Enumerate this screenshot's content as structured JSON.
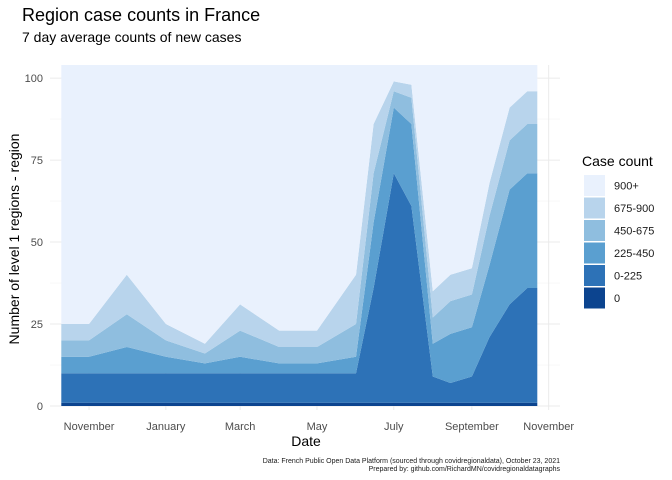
{
  "chart_data": {
    "type": "area",
    "title": "Region case counts in France",
    "subtitle": "7 day average counts of new cases",
    "xlabel": "Date",
    "ylabel": "Number of level 1 regions - region",
    "x_ticks": [
      "November",
      "January",
      "March",
      "May",
      "July",
      "September",
      "November"
    ],
    "x_tick_dates": [
      "2020-11-01",
      "2021-01-01",
      "2021-03-01",
      "2021-05-01",
      "2021-07-01",
      "2021-09-01",
      "2021-11-01"
    ],
    "xlim": [
      "2020-10-01",
      "2021-11-10"
    ],
    "y_ticks": [
      0,
      25,
      50,
      75,
      100
    ],
    "ylim": [
      0,
      104
    ],
    "grid": true,
    "legend": {
      "title": "Case count",
      "position": "right",
      "entries": [
        {
          "label": "900+",
          "color": "#e9f1fd"
        },
        {
          "label": "675-900",
          "color": "#b8d4ec"
        },
        {
          "label": "450-675",
          "color": "#8fbedf"
        },
        {
          "label": "225-450",
          "color": "#5a9fd0"
        },
        {
          "label": "0-225",
          "color": "#2d72b7"
        },
        {
          "label": "0",
          "color": "#0c448f"
        }
      ]
    },
    "stack_order_bottom_to_top": [
      "0",
      "0-225",
      "225-450",
      "450-675",
      "675-900",
      "900+"
    ],
    "x": [
      "2020-10-10",
      "2020-11-01",
      "2020-12-01",
      "2021-01-01",
      "2021-02-01",
      "2021-03-01",
      "2021-04-01",
      "2021-05-01",
      "2021-06-01",
      "2021-06-15",
      "2021-07-01",
      "2021-07-15",
      "2021-08-01",
      "2021-08-15",
      "2021-09-01",
      "2021-09-15",
      "2021-10-01",
      "2021-10-15",
      "2021-10-23"
    ],
    "series": [
      {
        "name": "0",
        "values": [
          1,
          1,
          1,
          1,
          1,
          1,
          1,
          1,
          1,
          1,
          1,
          1,
          1,
          1,
          1,
          1,
          1,
          1,
          1
        ]
      },
      {
        "name": "0-225",
        "values": [
          9,
          9,
          9,
          9,
          9,
          9,
          9,
          9,
          9,
          35,
          70,
          60,
          8,
          6,
          8,
          20,
          30,
          35,
          35
        ]
      },
      {
        "name": "225-450",
        "values": [
          5,
          5,
          8,
          5,
          3,
          5,
          3,
          3,
          5,
          20,
          20,
          25,
          10,
          15,
          15,
          22,
          35,
          35,
          35
        ]
      },
      {
        "name": "450-675",
        "values": [
          5,
          5,
          10,
          5,
          3,
          8,
          5,
          5,
          10,
          15,
          5,
          8,
          8,
          10,
          10,
          15,
          15,
          15,
          15
        ]
      },
      {
        "name": "675-900",
        "values": [
          5,
          5,
          12,
          5,
          3,
          8,
          5,
          5,
          15,
          15,
          3,
          4,
          8,
          8,
          8,
          10,
          10,
          10,
          10
        ]
      },
      {
        "name": "900+",
        "values": [
          79,
          79,
          64,
          79,
          85,
          73,
          81,
          81,
          64,
          18,
          5,
          6,
          69,
          64,
          62,
          36,
          13,
          8,
          8
        ]
      }
    ],
    "caption_lines": [
      "Data: French Public Open Data Platform (sourced through covidregionaldata), October 23, 2021",
      "Prepared by: github.com/RichardMN/covidregionaldatagraphs"
    ]
  }
}
